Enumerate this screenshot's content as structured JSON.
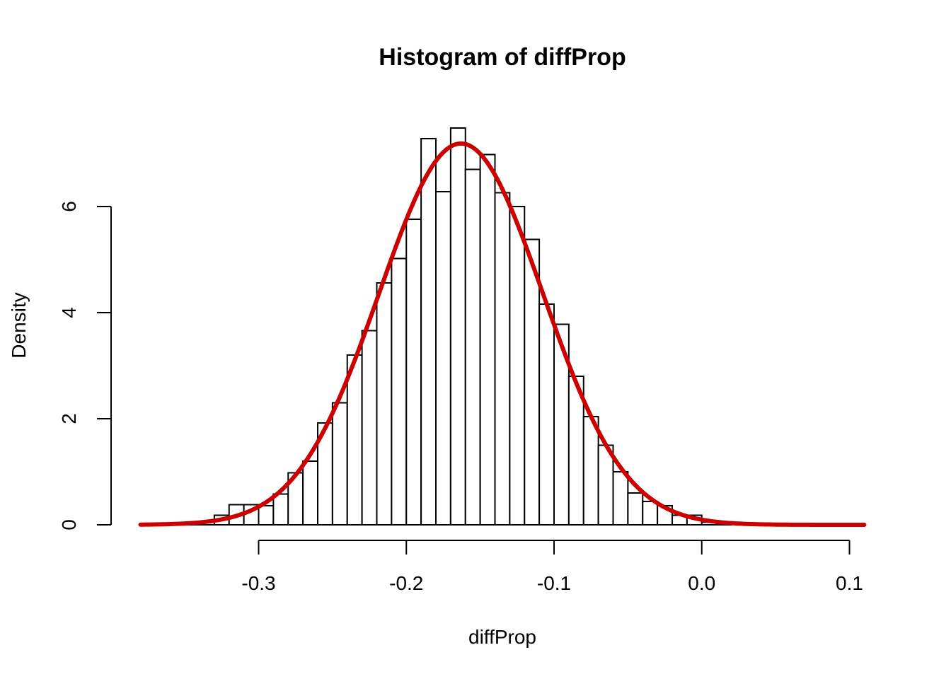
{
  "chart_data": {
    "type": "bar",
    "title": "Histogram of diffProp",
    "xlabel": "diffProp",
    "ylabel": "Density",
    "xlim": [
      -0.38,
      0.11
    ],
    "ylim": [
      0,
      7.5
    ],
    "x_ticks": [
      -0.3,
      -0.2,
      -0.1,
      0.0,
      0.1
    ],
    "x_tick_labels": [
      "-0.3",
      "-0.2",
      "-0.1",
      "0.0",
      "0.1"
    ],
    "y_ticks": [
      0,
      2,
      4,
      6
    ],
    "y_tick_labels": [
      "0",
      "2",
      "4",
      "6"
    ],
    "grid": false,
    "bin_width": 0.01,
    "bins": [
      {
        "start": -0.35,
        "end": -0.34,
        "density": 0.02
      },
      {
        "start": -0.34,
        "end": -0.33,
        "density": 0.05
      },
      {
        "start": -0.33,
        "end": -0.32,
        "density": 0.18
      },
      {
        "start": -0.32,
        "end": -0.31,
        "density": 0.38
      },
      {
        "start": -0.31,
        "end": -0.3,
        "density": 0.38
      },
      {
        "start": -0.3,
        "end": -0.29,
        "density": 0.36
      },
      {
        "start": -0.29,
        "end": -0.28,
        "density": 0.58
      },
      {
        "start": -0.28,
        "end": -0.27,
        "density": 0.98
      },
      {
        "start": -0.27,
        "end": -0.26,
        "density": 1.2
      },
      {
        "start": -0.26,
        "end": -0.25,
        "density": 1.92
      },
      {
        "start": -0.25,
        "end": -0.24,
        "density": 2.3
      },
      {
        "start": -0.24,
        "end": -0.23,
        "density": 3.2
      },
      {
        "start": -0.23,
        "end": -0.22,
        "density": 3.66
      },
      {
        "start": -0.22,
        "end": -0.21,
        "density": 4.56
      },
      {
        "start": -0.21,
        "end": -0.2,
        "density": 5.02
      },
      {
        "start": -0.2,
        "end": -0.19,
        "density": 5.76
      },
      {
        "start": -0.19,
        "end": -0.18,
        "density": 7.28
      },
      {
        "start": -0.18,
        "end": -0.17,
        "density": 6.28
      },
      {
        "start": -0.17,
        "end": -0.16,
        "density": 7.48
      },
      {
        "start": -0.16,
        "end": -0.15,
        "density": 6.7
      },
      {
        "start": -0.15,
        "end": -0.14,
        "density": 6.98
      },
      {
        "start": -0.14,
        "end": -0.13,
        "density": 6.26
      },
      {
        "start": -0.13,
        "end": -0.12,
        "density": 6.0
      },
      {
        "start": -0.12,
        "end": -0.11,
        "density": 5.38
      },
      {
        "start": -0.11,
        "end": -0.1,
        "density": 4.16
      },
      {
        "start": -0.1,
        "end": -0.09,
        "density": 3.78
      },
      {
        "start": -0.09,
        "end": -0.08,
        "density": 2.8
      },
      {
        "start": -0.08,
        "end": -0.07,
        "density": 2.04
      },
      {
        "start": -0.07,
        "end": -0.06,
        "density": 1.5
      },
      {
        "start": -0.06,
        "end": -0.05,
        "density": 1.0
      },
      {
        "start": -0.05,
        "end": -0.04,
        "density": 0.6
      },
      {
        "start": -0.04,
        "end": -0.03,
        "density": 0.44
      },
      {
        "start": -0.03,
        "end": -0.02,
        "density": 0.36
      },
      {
        "start": -0.02,
        "end": -0.01,
        "density": 0.18
      },
      {
        "start": -0.01,
        "end": 0.0,
        "density": 0.18
      },
      {
        "start": 0.0,
        "end": 0.01,
        "density": 0.05
      },
      {
        "start": 0.01,
        "end": 0.02,
        "density": 0.02
      }
    ],
    "series": [
      {
        "type": "line",
        "color": "#cc0000",
        "curve": "normal_density",
        "mean": -0.163,
        "sd": 0.0555,
        "x_range": [
          -0.38,
          0.11
        ]
      }
    ],
    "colors": {
      "bar_fill": "#ffffff",
      "bar_stroke": "#000000",
      "curve": "#cc0000"
    }
  }
}
